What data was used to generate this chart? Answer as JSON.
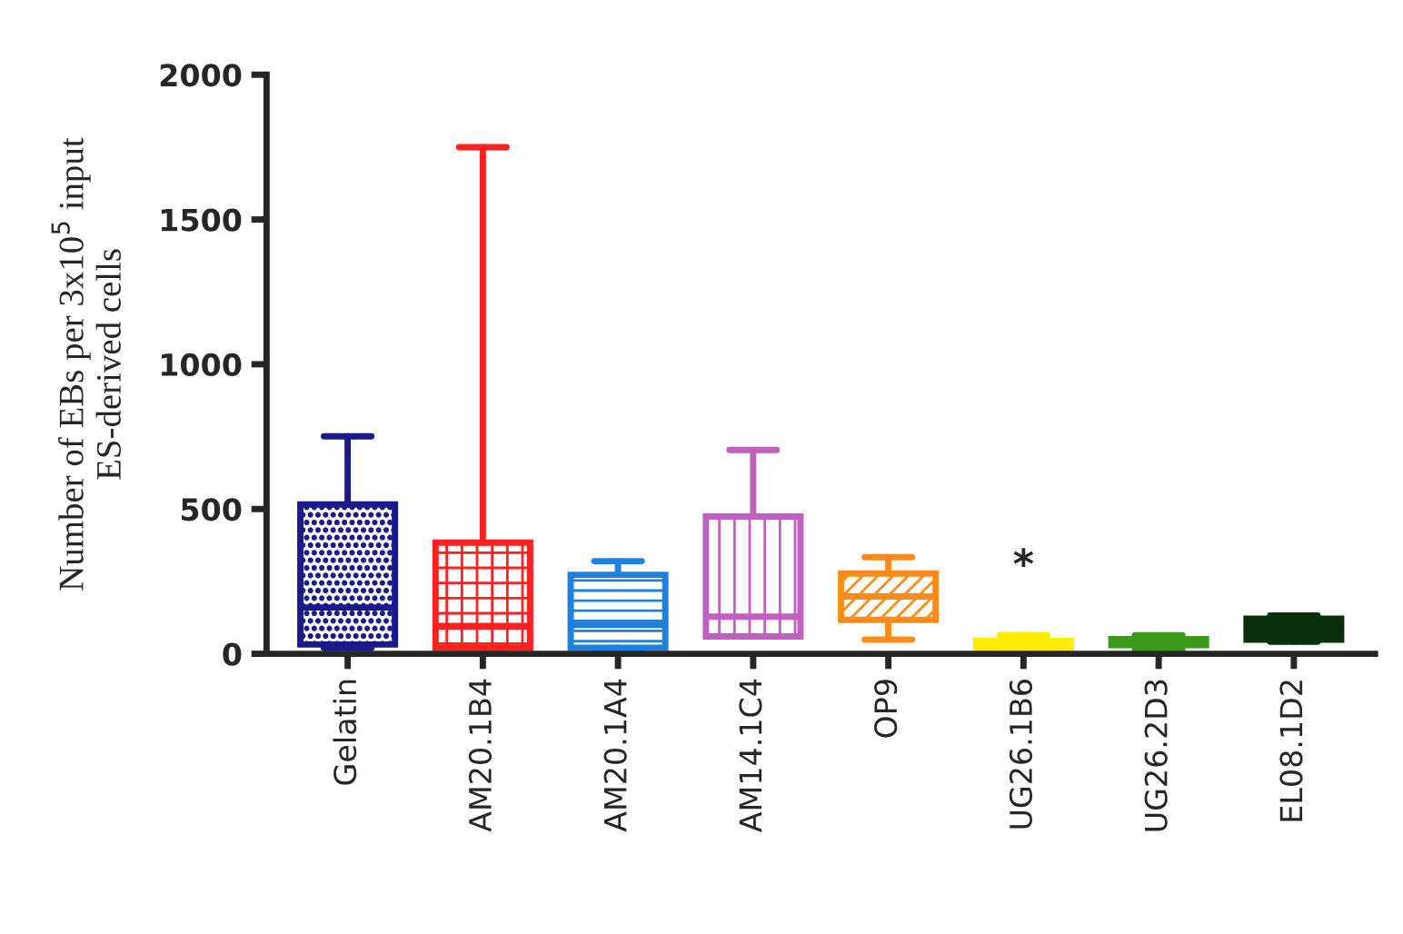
{
  "chart_data": {
    "type": "box",
    "ylabel": "Number of EBs per 3x10$^{5}$ input\nES-derived cells",
    "categories": [
      "Gelatin",
      "AM20.1B4",
      "AM20.1A4",
      "AM14.1C4",
      "OP9",
      "UG26.1B6",
      "UG26.2D3",
      "EL08.1D2"
    ],
    "colors": [
      "#1a1a8c",
      "#ff2020",
      "#2080e0",
      "#c060c0",
      "#ff8c1a",
      "#ffee00",
      "#3a9a1a",
      "#0a300a"
    ],
    "boxes": [
      {
        "low": 20,
        "q1": 32,
        "median": 160,
        "q3": 516,
        "high": 751
      },
      {
        "low": 20,
        "q1": 21,
        "median": 96,
        "q3": 384,
        "high": 1750
      },
      {
        "low": 15,
        "q1": 21,
        "median": 100,
        "q3": 273,
        "high": 320
      },
      {
        "low": 60,
        "q1": 60,
        "median": 128,
        "q3": 474,
        "high": 704
      },
      {
        "low": 49,
        "q1": 117,
        "median": 198,
        "q3": 277,
        "high": 334
      },
      {
        "low": 15,
        "q1": 20,
        "median": 35,
        "q3": 45,
        "high": 65
      },
      {
        "low": 14,
        "q1": 30,
        "median": 40,
        "q3": 51,
        "high": 64
      },
      {
        "low": 42,
        "q1": 49,
        "median": 85,
        "q3": 121,
        "high": 132
      }
    ],
    "ylim": [
      0,
      2000
    ],
    "yticks": [
      0,
      500,
      1000,
      1500,
      2000
    ],
    "grid": false,
    "annotations": [
      "*"
    ]
  }
}
